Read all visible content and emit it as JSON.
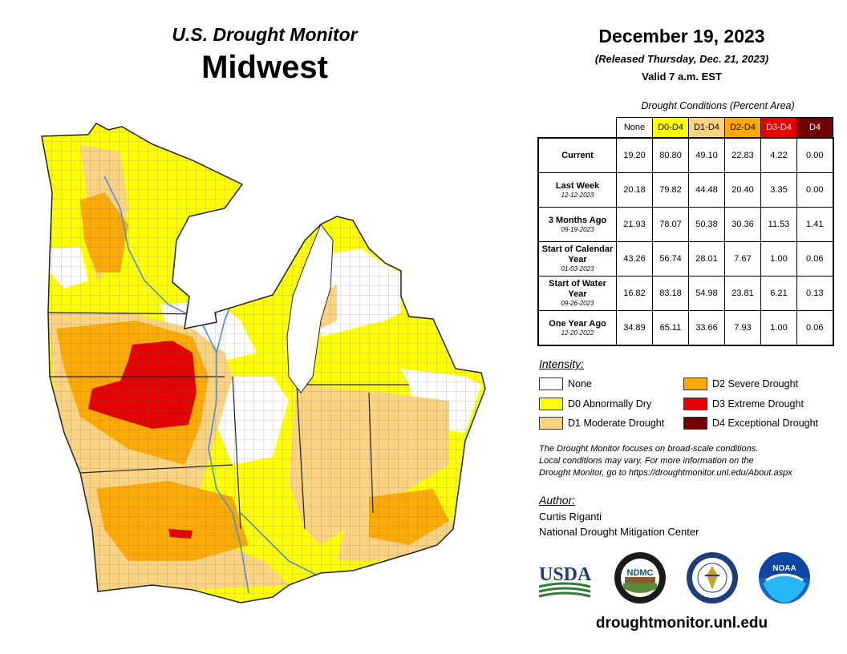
{
  "header": {
    "title": "U.S. Drought Monitor",
    "region": "Midwest",
    "date": "December 19, 2023",
    "released": "(Released Thursday, Dec. 21, 2023)",
    "valid": "Valid 7 a.m. EST"
  },
  "table": {
    "caption": "Drought Conditions (Percent Area)",
    "columns": [
      {
        "label": "None",
        "bg": "#ffffff",
        "fg": "#000000"
      },
      {
        "label": "D0-D4",
        "bg": "#ffff00",
        "fg": "#000000"
      },
      {
        "label": "D1-D4",
        "bg": "#fcd37f",
        "fg": "#000000"
      },
      {
        "label": "D2-D4",
        "bg": "#ffaa00",
        "fg": "#000000"
      },
      {
        "label": "D3-D4",
        "bg": "#e60000",
        "fg": "#ffffff"
      },
      {
        "label": "D4",
        "bg": "#730000",
        "fg": "#ffffff"
      }
    ],
    "rows": [
      {
        "label": "Current",
        "sub": "",
        "values": [
          "19.20",
          "80.80",
          "49.10",
          "22.83",
          "4.22",
          "0.00"
        ]
      },
      {
        "label": "Last Week",
        "sub": "12-12-2023",
        "values": [
          "20.18",
          "79.82",
          "44.48",
          "20.40",
          "3.35",
          "0.00"
        ]
      },
      {
        "label": "3 Months Ago",
        "sub": "09-19-2023",
        "values": [
          "21.93",
          "78.07",
          "50.38",
          "30.36",
          "11.53",
          "1.41"
        ]
      },
      {
        "label": "Start of Calendar Year",
        "sub": "01-03-2023",
        "values": [
          "43.26",
          "56.74",
          "28.01",
          "7.67",
          "1.00",
          "0.06"
        ]
      },
      {
        "label": "Start of Water Year",
        "sub": "09-26-2023",
        "values": [
          "16.82",
          "83.18",
          "54.98",
          "23.81",
          "6.21",
          "0.13"
        ]
      },
      {
        "label": "One Year Ago",
        "sub": "12-20-2022",
        "values": [
          "34.89",
          "65.11",
          "33.66",
          "7.93",
          "1.00",
          "0.06"
        ]
      }
    ]
  },
  "legend": {
    "title": "Intensity:",
    "items": [
      {
        "label": "None",
        "color": "#ffffff"
      },
      {
        "label": "D0 Abnormally Dry",
        "color": "#ffff00"
      },
      {
        "label": "D1 Moderate Drought",
        "color": "#fcd37f"
      },
      {
        "label": "D2 Severe Drought",
        "color": "#ffaa00"
      },
      {
        "label": "D3 Extreme Drought",
        "color": "#e60000"
      },
      {
        "label": "D4 Exceptional Drought",
        "color": "#730000"
      }
    ]
  },
  "note": {
    "line1": "The Drought Monitor focuses on broad-scale conditions.",
    "line2": "Local conditions may vary. For more information on the",
    "line3": "Drought Monitor, go to https://droughtmonitor.unl.edu/About.aspx"
  },
  "author": {
    "label": "Author:",
    "name": "Curtis Riganti",
    "org": "National Drought Mitigation Center"
  },
  "logos": {
    "usda": "USDA",
    "ndmc": "NDMC",
    "noaa": "NOAA"
  },
  "website": "droughtmonitor.unl.edu",
  "map_colors": {
    "none": "#ffffff",
    "d0": "#ffff00",
    "d1": "#fcd37f",
    "d2": "#ffaa00",
    "d3": "#e60000",
    "d4": "#730000",
    "water": "#6fa8dc",
    "border": "#333333"
  }
}
